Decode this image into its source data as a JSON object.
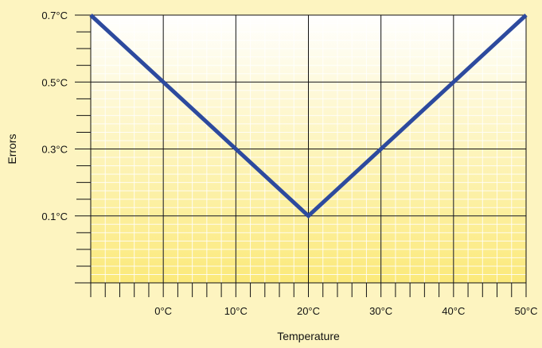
{
  "chart_data": {
    "type": "line",
    "title": "",
    "xlabel": "Temperature",
    "ylabel": "Errors",
    "x_ticks": [
      0,
      10,
      20,
      30,
      40,
      50
    ],
    "x_tick_labels": [
      "0°C",
      "10°C",
      "20°C",
      "30°C",
      "40°C",
      "50°C"
    ],
    "y_ticks": [
      0.1,
      0.3,
      0.5,
      0.7
    ],
    "y_tick_labels": [
      "0.1°C",
      "0.3°C",
      "0.5°C",
      "0.7°C"
    ],
    "xlim": [
      -10,
      50
    ],
    "ylim": [
      -0.1,
      0.7
    ],
    "grid": true,
    "series": [
      {
        "x": [
          -10,
          20,
          50
        ],
        "y": [
          0.7,
          0.1,
          0.7
        ],
        "color": "#2d4a9e"
      }
    ],
    "colors": {
      "background": "#fdf4c0",
      "gradient_top": "#ffffff",
      "gradient_bottom": "#fbe97a",
      "grid_major": "#111111",
      "grid_minor": "#ffffff",
      "line": "#2d4a9e"
    }
  }
}
